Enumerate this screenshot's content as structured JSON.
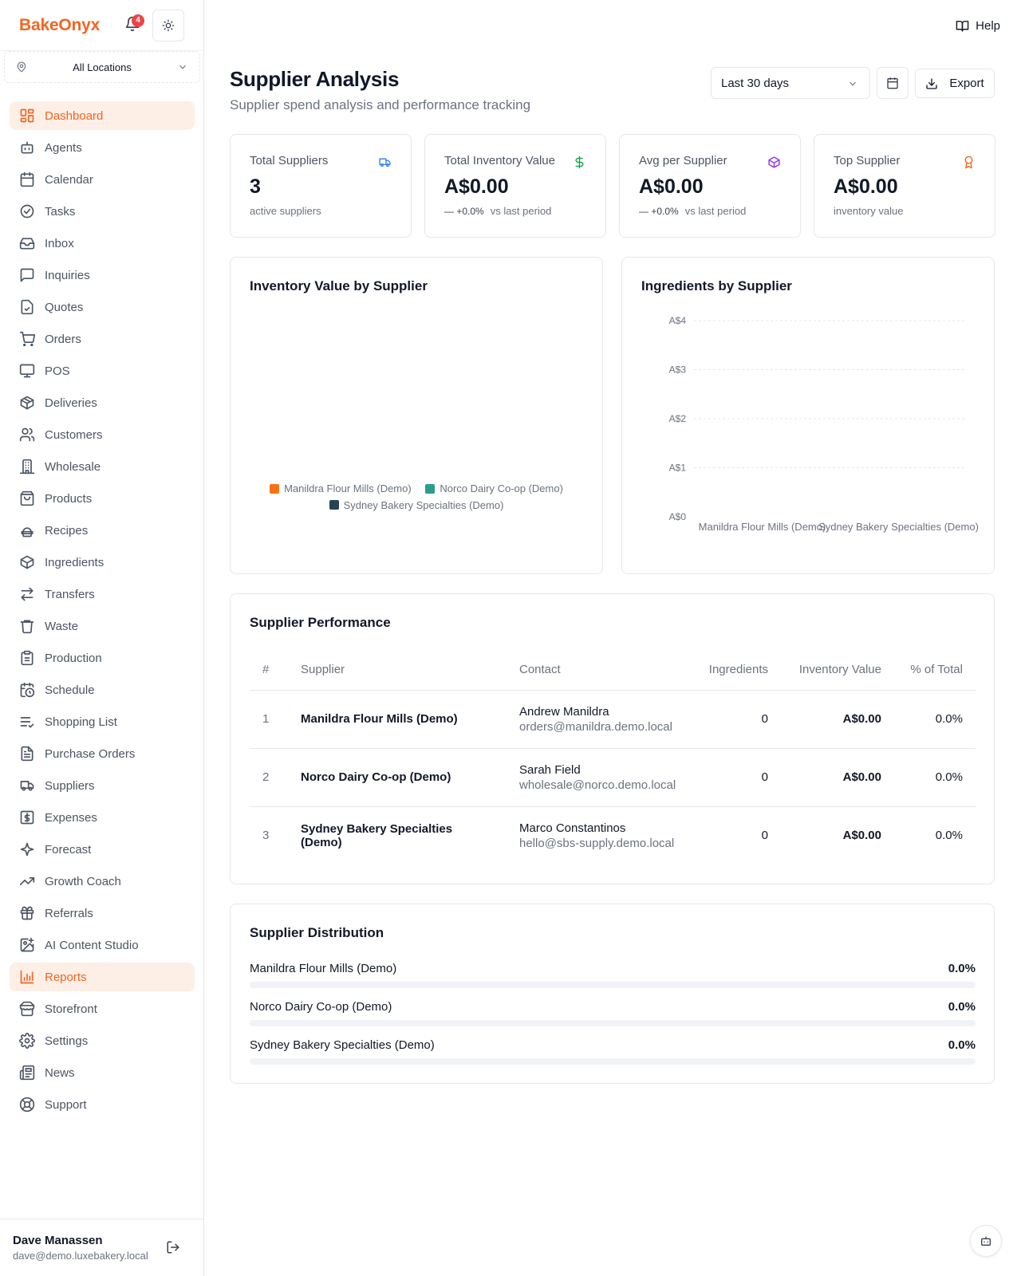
{
  "app": {
    "brand": "BakeOnyx",
    "notification_count": "4"
  },
  "location_select": {
    "value": "All Locations"
  },
  "nav": [
    {
      "label": "Dashboard",
      "icon": "dashboard-icon",
      "active": true
    },
    {
      "label": "Agents",
      "icon": "bot-icon"
    },
    {
      "label": "Calendar",
      "icon": "calendar-icon"
    },
    {
      "label": "Tasks",
      "icon": "check-circle-icon"
    },
    {
      "label": "Inbox",
      "icon": "inbox-icon"
    },
    {
      "label": "Inquiries",
      "icon": "message-icon"
    },
    {
      "label": "Quotes",
      "icon": "file-check-icon"
    },
    {
      "label": "Orders",
      "icon": "cart-icon"
    },
    {
      "label": "POS",
      "icon": "monitor-icon"
    },
    {
      "label": "Deliveries",
      "icon": "package-icon"
    },
    {
      "label": "Customers",
      "icon": "users-icon"
    },
    {
      "label": "Wholesale",
      "icon": "building-icon"
    },
    {
      "label": "Products",
      "icon": "bag-icon"
    },
    {
      "label": "Recipes",
      "icon": "chef-hat-icon"
    },
    {
      "label": "Ingredients",
      "icon": "box-icon"
    },
    {
      "label": "Transfers",
      "icon": "transfer-icon"
    },
    {
      "label": "Waste",
      "icon": "trash-icon"
    },
    {
      "label": "Production",
      "icon": "clipboard-icon"
    },
    {
      "label": "Schedule",
      "icon": "clock-calendar-icon"
    },
    {
      "label": "Shopping List",
      "icon": "list-check-icon"
    },
    {
      "label": "Purchase Orders",
      "icon": "file-text-icon"
    },
    {
      "label": "Suppliers",
      "icon": "truck-icon"
    },
    {
      "label": "Expenses",
      "icon": "dollar-square-icon"
    },
    {
      "label": "Forecast",
      "icon": "sparkle-icon"
    },
    {
      "label": "Growth Coach",
      "icon": "trending-up-icon"
    },
    {
      "label": "Referrals",
      "icon": "gift-icon"
    },
    {
      "label": "AI Content Studio",
      "icon": "image-sparkle-icon"
    },
    {
      "label": "Reports",
      "icon": "bar-chart-icon",
      "active": true
    },
    {
      "label": "Storefront",
      "icon": "store-icon"
    },
    {
      "label": "Settings",
      "icon": "gear-icon"
    },
    {
      "label": "News",
      "icon": "newspaper-icon"
    },
    {
      "label": "Support",
      "icon": "lifebuoy-icon"
    }
  ],
  "user": {
    "name": "Dave Manassen",
    "email": "dave@demo.luxebakery.local"
  },
  "header": {
    "help": "Help"
  },
  "page": {
    "title": "Supplier Analysis",
    "subtitle": "Supplier spend analysis and performance tracking",
    "range": "Last 30 days",
    "export": "Export"
  },
  "stats": [
    {
      "label": "Total Suppliers",
      "value": "3",
      "change": "",
      "foot": "active suppliers",
      "icon": "truck-icon",
      "color": "#3b82f6"
    },
    {
      "label": "Total Inventory Value",
      "value": "A$0.00",
      "change": "+0.0%",
      "foot": "vs last period",
      "icon": "dollar-icon",
      "color": "#16a34a"
    },
    {
      "label": "Avg per Supplier",
      "value": "A$0.00",
      "change": "+0.0%",
      "foot": "vs last period",
      "icon": "package-icon",
      "color": "#9333ea"
    },
    {
      "label": "Top Supplier",
      "value": "A$0.00",
      "change": "",
      "foot": "inventory value",
      "icon": "award-icon",
      "color": "#f26522"
    }
  ],
  "colors": {
    "accent": "#f26522",
    "manildra": "#f97316",
    "norco": "#2a9d8f",
    "sydney": "#264653"
  },
  "chart_data": [
    {
      "type": "pie",
      "title": "Inventory Value by Supplier",
      "categories": [
        "Manildra Flour Mills (Demo)",
        "Norco Dairy Co-op (Demo)",
        "Sydney Bakery Specialties (Demo)"
      ],
      "values": [
        0,
        0,
        0
      ],
      "legend": "bottom"
    },
    {
      "type": "bar",
      "title": "Ingredients by Supplier",
      "categories": [
        "Manildra Flour Mills (Demo)",
        "Sydney Bakery Specialties (Demo)"
      ],
      "values": [
        0,
        0
      ],
      "yticks": [
        "A$0",
        "A$1",
        "A$2",
        "A$3",
        "A$4"
      ],
      "ylim": [
        0,
        4
      ],
      "grid": true
    }
  ],
  "performance": {
    "title": "Supplier Performance",
    "headers": [
      "#",
      "Supplier",
      "Contact",
      "Ingredients",
      "Inventory Value",
      "% of Total"
    ],
    "rows": [
      {
        "n": "1",
        "supplier": "Manildra Flour Mills (Demo)",
        "contact": "Andrew Manildra",
        "email": "orders@manildra.demo.local",
        "ingredients": "0",
        "value": "A$0.00",
        "pct": "0.0%"
      },
      {
        "n": "2",
        "supplier": "Norco Dairy Co-op (Demo)",
        "contact": "Sarah Field",
        "email": "wholesale@norco.demo.local",
        "ingredients": "0",
        "value": "A$0.00",
        "pct": "0.0%"
      },
      {
        "n": "3",
        "supplier": "Sydney Bakery Specialties (Demo)",
        "contact": "Marco Constantinos",
        "email": "hello@sbs-supply.demo.local",
        "ingredients": "0",
        "value": "A$0.00",
        "pct": "0.0%"
      }
    ]
  },
  "distribution": {
    "title": "Supplier Distribution",
    "rows": [
      {
        "name": "Manildra Flour Mills (Demo)",
        "pct": "0.0%",
        "fraction": 0
      },
      {
        "name": "Norco Dairy Co-op (Demo)",
        "pct": "0.0%",
        "fraction": 0
      },
      {
        "name": "Sydney Bakery Specialties (Demo)",
        "pct": "0.0%",
        "fraction": 0
      }
    ]
  }
}
